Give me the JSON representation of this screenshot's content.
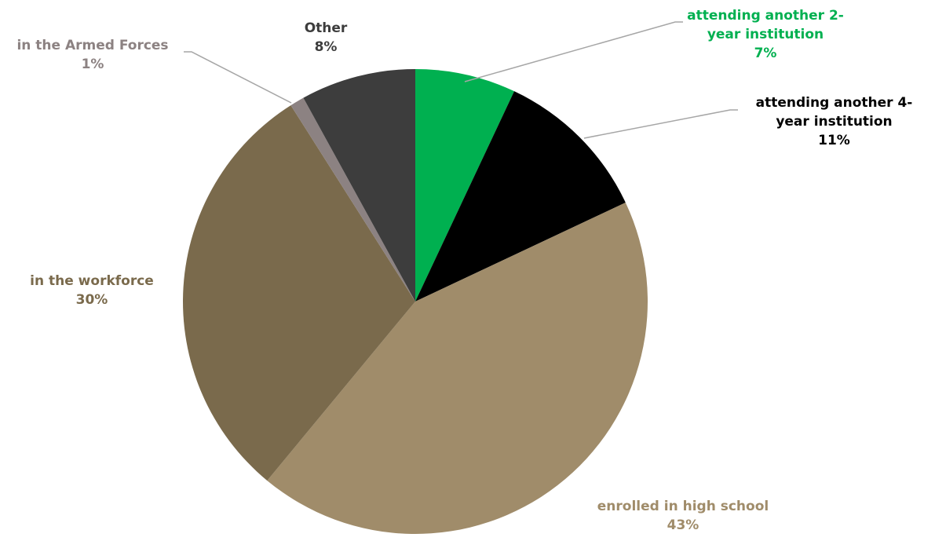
{
  "chart_data": {
    "type": "pie",
    "title": "",
    "start_angle_deg": 0,
    "direction": "clockwise",
    "slices": [
      {
        "label_lines": [
          "attending another 2-",
          "year institution"
        ],
        "value": 7,
        "pct_label": "7%",
        "color": "#00b050",
        "label_color": "#00b050"
      },
      {
        "label_lines": [
          "attending another 4-",
          "year institution"
        ],
        "value": 11,
        "pct_label": "11%",
        "color": "#000000",
        "label_color": "#000000"
      },
      {
        "label_lines": [
          "enrolled in high school"
        ],
        "value": 43,
        "pct_label": "43%",
        "color": "#a08c6a",
        "label_color": "#a08c6a"
      },
      {
        "label_lines": [
          "in the workforce"
        ],
        "value": 30,
        "pct_label": "30%",
        "color": "#7a6a4c",
        "label_color": "#7a6a4c"
      },
      {
        "label_lines": [
          "in the Armed Forces"
        ],
        "value": 1,
        "pct_label": "1%",
        "color": "#8c8282",
        "label_color": "#8c8282"
      },
      {
        "label_lines": [
          "Other"
        ],
        "value": 8,
        "pct_label": "8%",
        "color": "#3d3d3d",
        "label_color": "#3d3d3d"
      }
    ],
    "leader_line_color": "#a6a6a6"
  }
}
